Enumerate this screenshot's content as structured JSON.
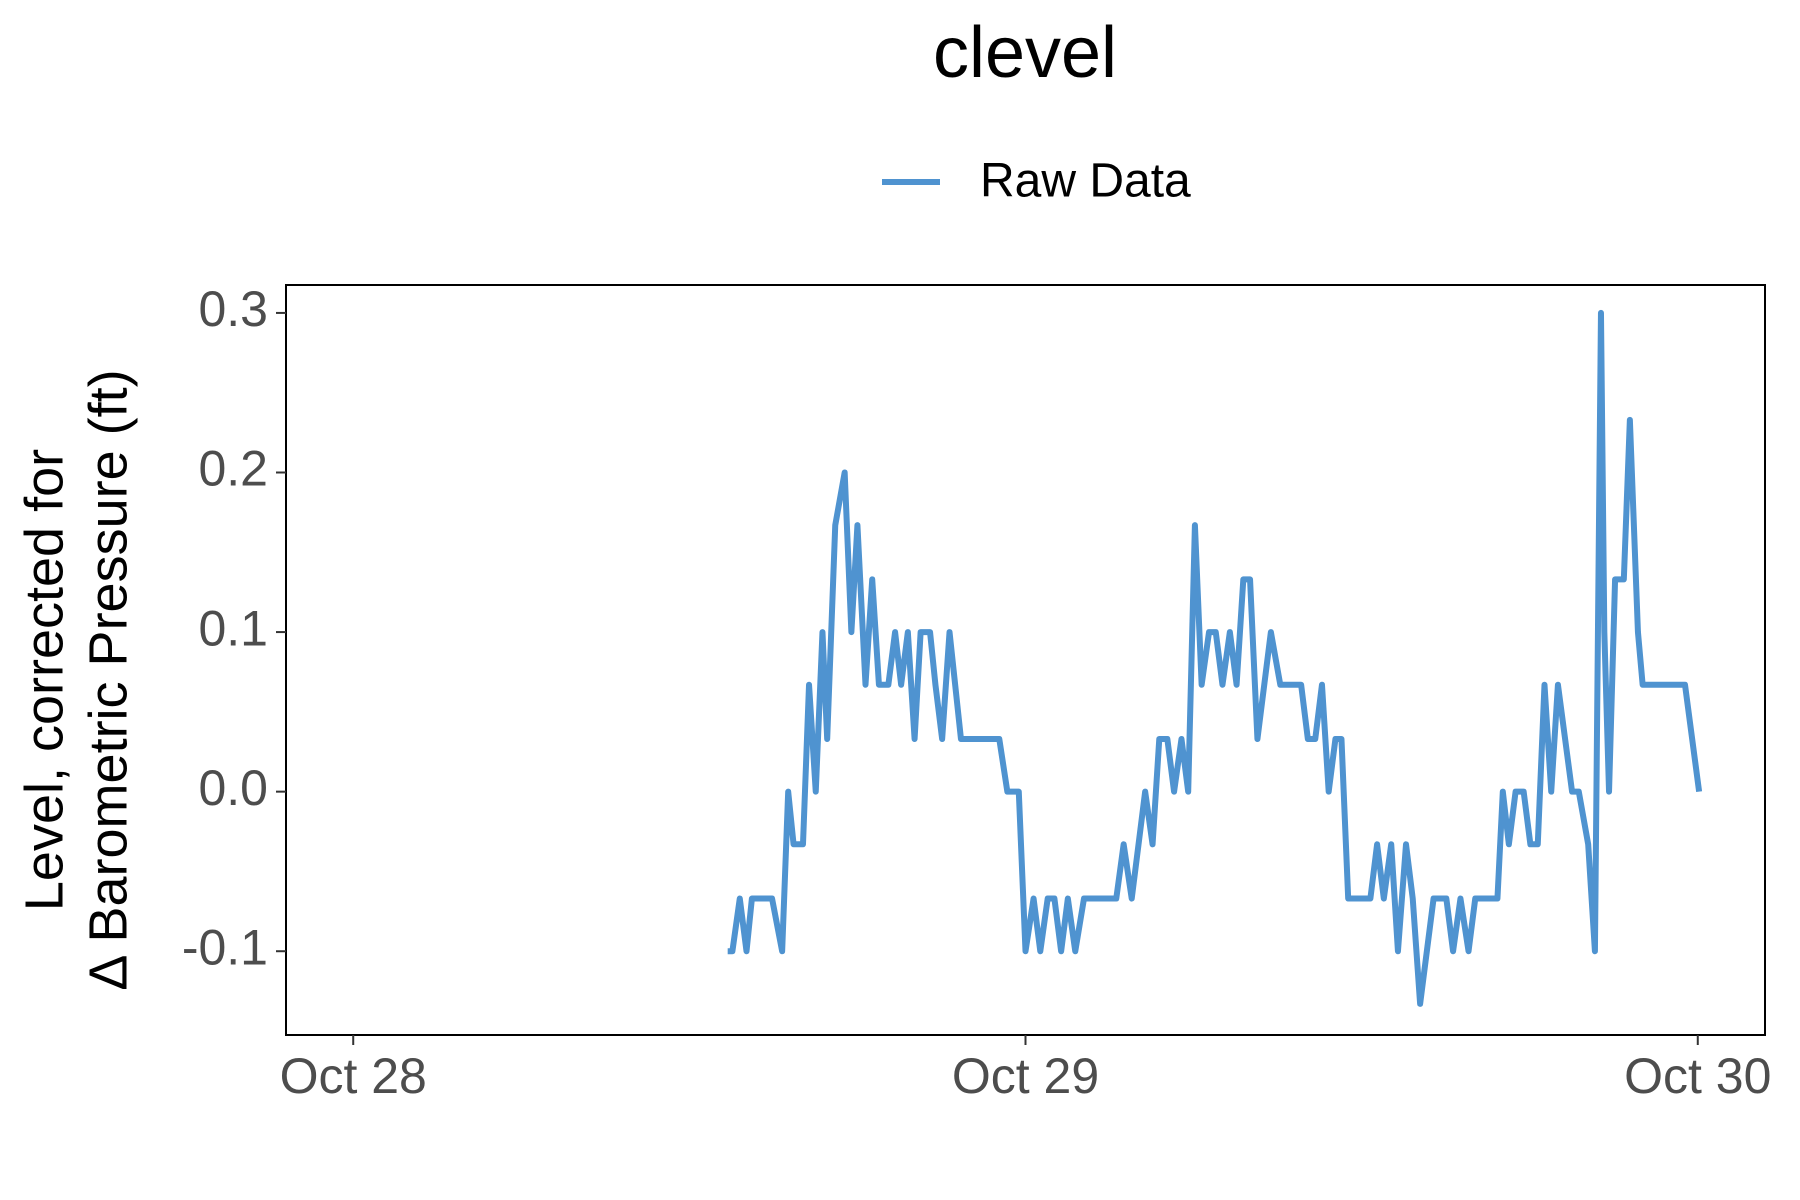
{
  "chart_data": {
    "type": "line",
    "title": "clevel",
    "y_label": [
      "Level, corrected for",
      "Δ Barometric Pressure (ft)"
    ],
    "xlim": [
      27.9,
      30.1
    ],
    "xticks": [
      {
        "value": 28,
        "label": "Oct 28"
      },
      {
        "value": 29,
        "label": "Oct 29"
      },
      {
        "value": 30,
        "label": "Oct 30"
      }
    ],
    "ylim": [
      -0.1525,
      0.3175
    ],
    "yticks": [
      -0.1,
      {
        "value": 0,
        "label": "0.0"
      },
      0.1,
      0.2,
      0.3
    ],
    "grid": false,
    "legend": "top",
    "x": [
      28.557,
      28.564,
      28.575,
      28.585,
      28.593,
      28.623,
      28.638,
      28.647,
      28.655,
      28.669,
      28.678,
      28.688,
      28.698,
      28.705,
      28.717,
      28.731,
      28.741,
      28.75,
      28.762,
      28.772,
      28.782,
      28.796,
      28.806,
      28.815,
      28.825,
      28.835,
      28.844,
      28.858,
      28.866,
      28.876,
      28.887,
      28.904,
      28.961,
      28.973,
      28.99,
      29.0,
      29.012,
      29.022,
      29.033,
      29.043,
      29.053,
      29.063,
      29.074,
      29.087,
      29.135,
      29.146,
      29.158,
      29.178,
      29.189,
      29.199,
      29.211,
      29.221,
      29.232,
      29.242,
      29.252,
      29.262,
      29.273,
      29.283,
      29.293,
      29.304,
      29.314,
      29.324,
      29.334,
      29.345,
      29.365,
      29.379,
      29.41,
      29.42,
      29.431,
      29.441,
      29.451,
      29.461,
      29.47,
      29.48,
      29.513,
      29.523,
      29.533,
      29.544,
      29.554,
      29.566,
      29.576,
      29.587,
      29.607,
      29.626,
      29.636,
      29.647,
      29.659,
      29.669,
      29.702,
      29.71,
      29.719,
      29.729,
      29.741,
      29.751,
      29.762,
      29.772,
      29.782,
      29.792,
      29.813,
      29.823,
      29.837,
      29.847,
      29.856,
      29.861,
      29.868,
      29.877,
      29.89,
      29.899,
      29.911,
      29.918,
      29.981,
      30.002
    ],
    "series": [
      {
        "name": "Raw Data",
        "color": "#4f93d0",
        "values": [
          -0.1,
          -0.1,
          -0.067,
          -0.1,
          -0.067,
          -0.067,
          -0.1,
          0,
          -0.033,
          -0.033,
          0.067,
          0,
          0.1,
          0.033,
          0.167,
          0.2,
          0.1,
          0.167,
          0.067,
          0.133,
          0.067,
          0.067,
          0.1,
          0.067,
          0.1,
          0.033,
          0.1,
          0.1,
          0.067,
          0.033,
          0.1,
          0.033,
          0.033,
          0,
          0,
          -0.1,
          -0.067,
          -0.1,
          -0.067,
          -0.067,
          -0.1,
          -0.067,
          -0.1,
          -0.067,
          -0.067,
          -0.033,
          -0.067,
          0,
          -0.033,
          0.033,
          0.033,
          0,
          0.033,
          0,
          0.167,
          0.067,
          0.1,
          0.1,
          0.067,
          0.1,
          0.067,
          0.133,
          0.133,
          0.033,
          0.1,
          0.067,
          0.067,
          0.033,
          0.033,
          0.067,
          0,
          0.033,
          0.033,
          -0.067,
          -0.067,
          -0.033,
          -0.067,
          -0.033,
          -0.1,
          -0.033,
          -0.067,
          -0.133,
          -0.067,
          -0.067,
          -0.1,
          -0.067,
          -0.1,
          -0.067,
          -0.067,
          0,
          -0.033,
          0,
          0,
          -0.033,
          -0.033,
          0.067,
          0,
          0.067,
          0,
          0,
          -0.033,
          -0.1,
          0.3,
          0.1,
          0,
          0.133,
          0.133,
          0.233,
          0.1,
          0.067,
          0.067,
          0
        ]
      }
    ]
  }
}
